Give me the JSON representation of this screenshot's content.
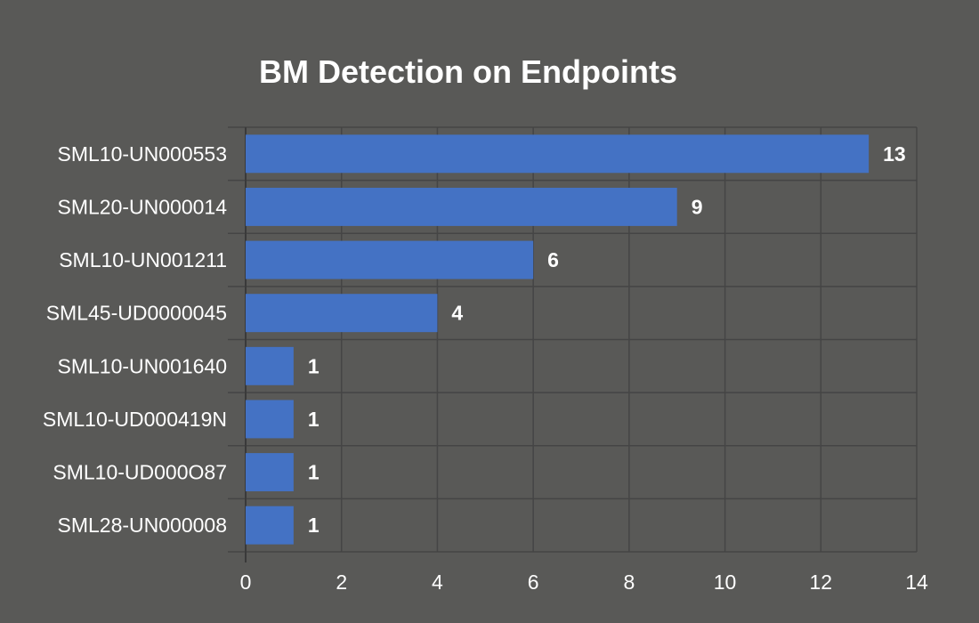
{
  "chart_data": {
    "type": "bar",
    "orientation": "horizontal",
    "title": "BM Detection on Endpoints",
    "xlabel": "",
    "ylabel": "",
    "categories": [
      "SML10-UN000553",
      "SML20-UN000014",
      "SML10-UN001211",
      "SML45-UD0000045",
      "SML10-UN001640",
      "SML10-UD000419N",
      "SML10-UD000O87",
      "SML28-UN000008"
    ],
    "values": [
      13,
      9,
      6,
      4,
      1,
      1,
      1,
      1
    ],
    "xlim": [
      0,
      14
    ],
    "xticks": [
      "0",
      "2",
      "4",
      "6",
      "8",
      "10",
      "12",
      "14"
    ],
    "grid": true,
    "legend": "none",
    "data_labels": true,
    "colors": {
      "background": "#595957",
      "bar": "#4472C4",
      "grid": "#454545",
      "text": "#ffffff"
    }
  }
}
